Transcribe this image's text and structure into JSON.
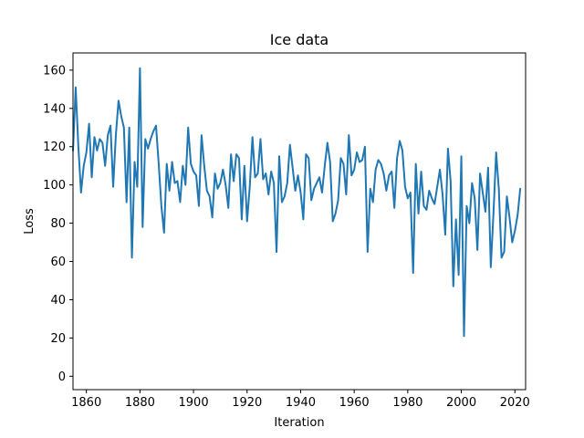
{
  "chart_data": {
    "type": "line",
    "title": "Ice data",
    "xlabel": "Iteration",
    "ylabel": "Loss",
    "xlim": [
      1855,
      2024
    ],
    "ylim": [
      -7,
      169
    ],
    "xticks": [
      1860,
      1880,
      1900,
      1920,
      1940,
      1960,
      1980,
      2000,
      2020
    ],
    "yticks": [
      0,
      20,
      40,
      60,
      80,
      100,
      120,
      140,
      160
    ],
    "grid": false,
    "line_color": "#1f77b4",
    "series": [
      {
        "x": [
          1855,
          1856,
          1857,
          1858,
          1859,
          1860,
          1861,
          1862,
          1863,
          1864,
          1865,
          1866,
          1867,
          1868,
          1869,
          1870,
          1871,
          1872,
          1873,
          1874,
          1875,
          1876,
          1877,
          1878,
          1879,
          1880,
          1881,
          1882,
          1883,
          1884,
          1885,
          1886,
          1887,
          1888,
          1889,
          1890,
          1891,
          1892,
          1893,
          1894,
          1895,
          1896,
          1897,
          1898,
          1899,
          1900,
          1901,
          1902,
          1903,
          1904,
          1905,
          1906,
          1907,
          1908,
          1909,
          1910,
          1911,
          1912,
          1913,
          1914,
          1915,
          1916,
          1917,
          1918,
          1919,
          1920,
          1921,
          1922,
          1923,
          1924,
          1925,
          1926,
          1927,
          1928,
          1929,
          1930,
          1931,
          1932,
          1933,
          1934,
          1935,
          1936,
          1937,
          1938,
          1939,
          1940,
          1941,
          1942,
          1943,
          1944,
          1945,
          1946,
          1947,
          1948,
          1949,
          1950,
          1951,
          1952,
          1953,
          1954,
          1955,
          1956,
          1957,
          1958,
          1959,
          1960,
          1961,
          1962,
          1963,
          1964,
          1965,
          1966,
          1967,
          1968,
          1969,
          1970,
          1971,
          1972,
          1973,
          1974,
          1975,
          1976,
          1977,
          1978,
          1979,
          1980,
          1981,
          1982,
          1983,
          1984,
          1985,
          1986,
          1987,
          1988,
          1989,
          1990,
          1991,
          1992,
          1993,
          1994,
          1995,
          1996,
          1997,
          1998,
          1999,
          2000,
          2001,
          2002,
          2003,
          2004,
          2005,
          2006,
          2007,
          2008,
          2009,
          2010,
          2011,
          2012,
          2013,
          2014,
          2015,
          2016,
          2017,
          2018,
          2019,
          2020,
          2021,
          2022
        ],
        "values": [
          118,
          151,
          120,
          96,
          110,
          117,
          132,
          104,
          125,
          118,
          124,
          122,
          110,
          126,
          131,
          99,
          126,
          144,
          136,
          130,
          91,
          130,
          62,
          112,
          99,
          161,
          78,
          124,
          119,
          124,
          128,
          131,
          111,
          89,
          75,
          111,
          97,
          112,
          101,
          102,
          91,
          110,
          100,
          130,
          111,
          107,
          105,
          89,
          126,
          110,
          97,
          94,
          83,
          106,
          98,
          101,
          108,
          100,
          88,
          116,
          102,
          116,
          114,
          82,
          110,
          81,
          99,
          125,
          104,
          106,
          124,
          103,
          106,
          95,
          107,
          101,
          65,
          115,
          91,
          94,
          101,
          121,
          109,
          97,
          105,
          96,
          82,
          116,
          114,
          92,
          98,
          101,
          104,
          96,
          110,
          122,
          112,
          81,
          85,
          92,
          114,
          111,
          95,
          126,
          105,
          108,
          117,
          112,
          113,
          120,
          65,
          98,
          91,
          108,
          113,
          111,
          106,
          97,
          105,
          107,
          88,
          114,
          123,
          118,
          99,
          93,
          96,
          54,
          111,
          85,
          107,
          89,
          87,
          97,
          93,
          90,
          99,
          108,
          95,
          74,
          119,
          102,
          47,
          82,
          53,
          115,
          21,
          89,
          80,
          101,
          93,
          66,
          106,
          96,
          86,
          109,
          57,
          85,
          117,
          98,
          62,
          65,
          94,
          83,
          70,
          76,
          84,
          98
        ]
      }
    ]
  }
}
